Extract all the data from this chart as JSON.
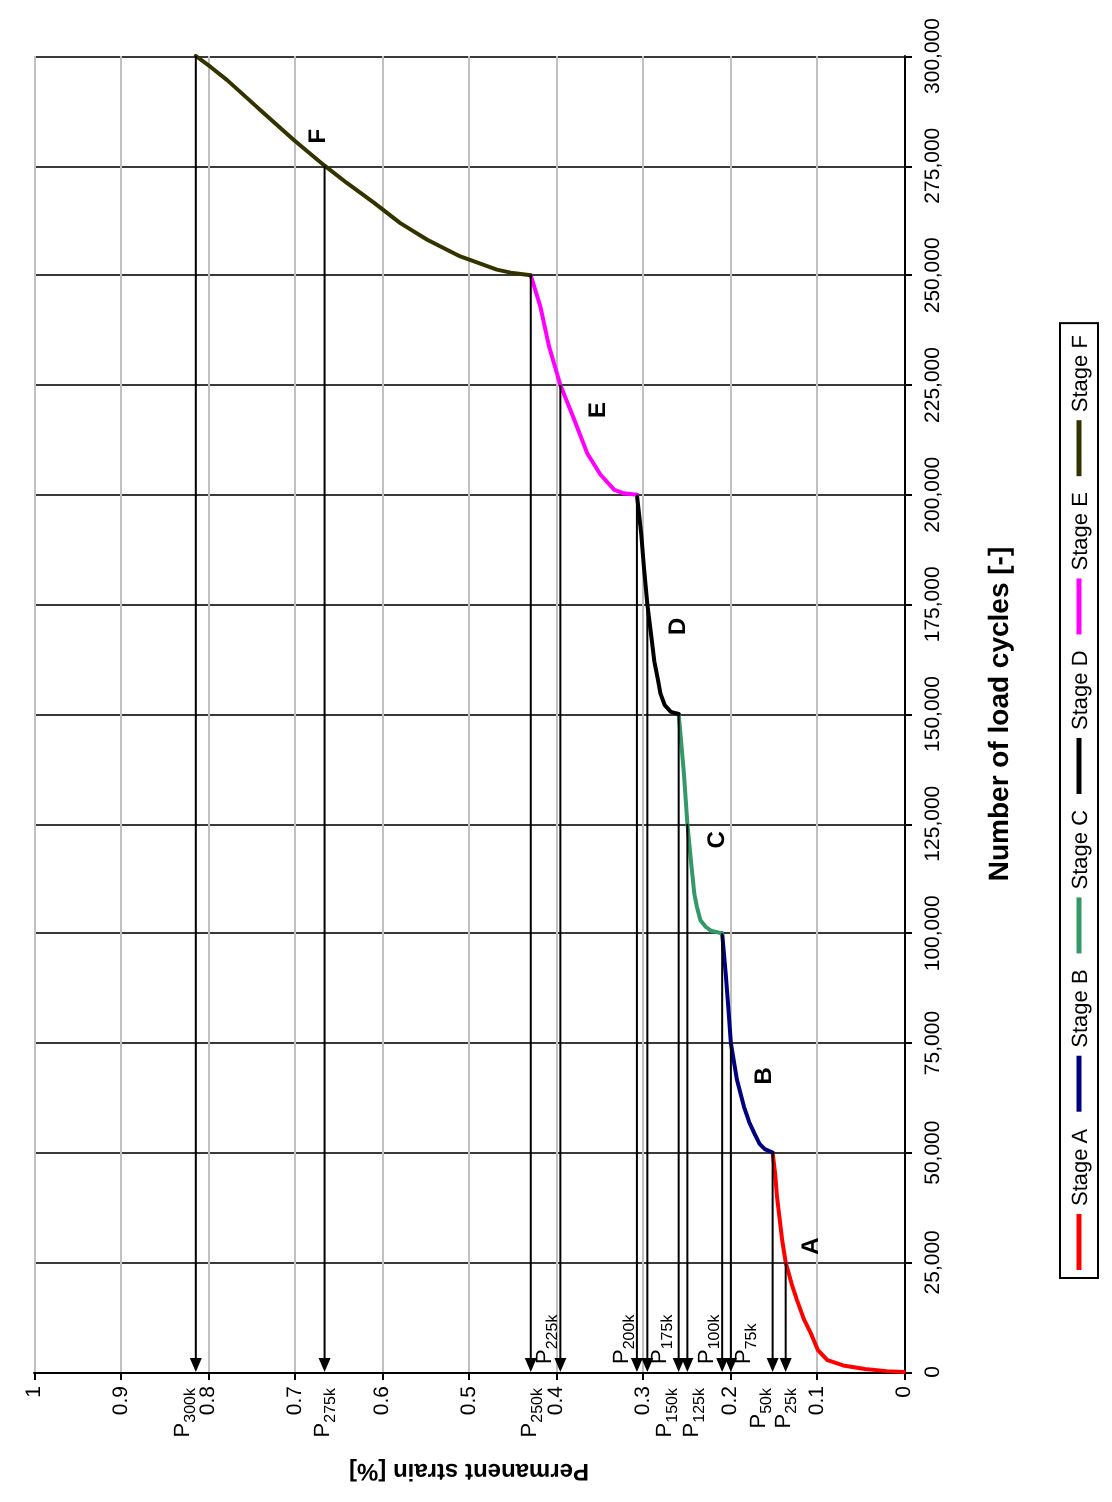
{
  "chart_data": {
    "type": "line",
    "xlabel": "Permanent strain [%]",
    "ylabel": "Number of load cycles [-]",
    "xlim": [
      1,
      0
    ],
    "xticks": [
      1,
      0.9,
      0.8,
      0.7,
      0.6,
      0.5,
      0.4,
      0.3,
      0.2,
      0.1,
      0
    ],
    "ylim": [
      0,
      300000
    ],
    "yticks": [
      0,
      {
        "value": 25000,
        "label": "25,000"
      },
      {
        "value": 50000,
        "label": "50,000"
      },
      {
        "value": 75000,
        "label": "75,000"
      },
      {
        "value": 100000,
        "label": "100,000"
      },
      {
        "value": 125000,
        "label": "125,000"
      },
      {
        "value": 150000,
        "label": "150,000"
      },
      {
        "value": 175000,
        "label": "175,000"
      },
      {
        "value": 200000,
        "label": "200,000"
      },
      {
        "value": 225000,
        "label": "225,000"
      },
      {
        "value": 250000,
        "label": "250,000"
      },
      {
        "value": 275000,
        "label": "275,000"
      },
      {
        "value": 300000,
        "label": "300,000"
      }
    ],
    "grid": true,
    "legend": "right",
    "marker": "none",
    "series": [
      {
        "name": "Stage A",
        "color": "#ff0000",
        "x": [
          0,
          0.02,
          0.045,
          0.07,
          0.088,
          0.099,
          0.107,
          0.115,
          0.123,
          0.129,
          0.136,
          0.14,
          0.143,
          0.146,
          0.148,
          0.151
        ],
        "values": [
          0,
          200,
          700,
          1500,
          2700,
          5000,
          8800,
          12000,
          16400,
          20000,
          25000,
          30000,
          35000,
          40000,
          45000,
          50000
        ]
      },
      {
        "name": "Stage B",
        "color": "#000080",
        "x": [
          0.151,
          0.16,
          0.166,
          0.172,
          0.178,
          0.184,
          0.192,
          0.199,
          0.202,
          0.205,
          0.209
        ],
        "values": [
          50000,
          50800,
          52000,
          54400,
          57000,
          60500,
          66600,
          75000,
          83300,
          91000,
          100000
        ]
      },
      {
        "name": "Stage C",
        "color": "#339966",
        "x": [
          0.209,
          0.222,
          0.228,
          0.234,
          0.238,
          0.241,
          0.245,
          0.249,
          0.253,
          0.259
        ],
        "values": [
          100000,
          100600,
          101500,
          103000,
          106000,
          109000,
          116700,
          125000,
          136500,
          150000
        ]
      },
      {
        "name": "Stage D",
        "color": "#000000",
        "x": [
          0.259,
          0.268,
          0.275,
          0.28,
          0.283,
          0.287,
          0.29,
          0.295,
          0.299,
          0.302,
          0.307
        ],
        "values": [
          150000,
          150500,
          152000,
          154700,
          158000,
          162000,
          167000,
          175000,
          183600,
          191000,
          200000
        ]
      },
      {
        "name": "Stage E",
        "color": "#ff00ff",
        "x": [
          0.307,
          0.322,
          0.333,
          0.349,
          0.364,
          0.379,
          0.395,
          0.408,
          0.418,
          0.429
        ],
        "values": [
          200000,
          200300,
          201100,
          204600,
          209400,
          217100,
          225000,
          233800,
          242900,
          250000
        ]
      },
      {
        "name": "Stage F",
        "color": "#333300",
        "x": [
          0.429,
          0.452,
          0.468,
          0.51,
          0.548,
          0.579,
          0.609,
          0.64,
          0.666,
          0.701,
          0.74,
          0.778,
          0.797,
          0.814
        ],
        "values": [
          250000,
          250600,
          251300,
          254300,
          258100,
          261900,
          266500,
          271000,
          275000,
          280800,
          287700,
          294500,
          297500,
          300000
        ]
      }
    ],
    "annotations": [
      {
        "text": "A",
        "x": 0.139,
        "y": 28700
      },
      {
        "text": "B",
        "x": 0.193,
        "y": 67500
      },
      {
        "text": "C",
        "x": 0.247,
        "y": 121300
      },
      {
        "text": "D",
        "x": 0.292,
        "y": 170000
      },
      {
        "text": "E",
        "x": 0.384,
        "y": 219300
      },
      {
        "text": "F",
        "x": 0.706,
        "y": 281700
      },
      {
        "text": "P$_{25k}$",
        "x": 0.136,
        "y": 25000
      },
      {
        "text": "P$_{50k}$",
        "x": 0.151,
        "y": 50000
      },
      {
        "text": "P$_{75k}$",
        "x": 0.199,
        "y": 75000
      },
      {
        "text": "P$_{100k}$",
        "x": 0.209,
        "y": 100000
      },
      {
        "text": "P$_{125k}$",
        "x": 0.249,
        "y": 125000
      },
      {
        "text": "P$_{150k}$",
        "x": 0.259,
        "y": 150000
      },
      {
        "text": "P$_{175k}$",
        "x": 0.295,
        "y": 175000
      },
      {
        "text": "P$_{200k}$",
        "x": 0.307,
        "y": 200000
      },
      {
        "text": "P$_{225k}$",
        "x": 0.395,
        "y": 225000
      },
      {
        "text": "P$_{250k}$",
        "x": 0.429,
        "y": 250000
      },
      {
        "text": "P$_{275k}$",
        "x": 0.666,
        "y": 275000
      },
      {
        "text": "P$_{300k}$",
        "x": 0.814,
        "y": 300000
      }
    ]
  }
}
